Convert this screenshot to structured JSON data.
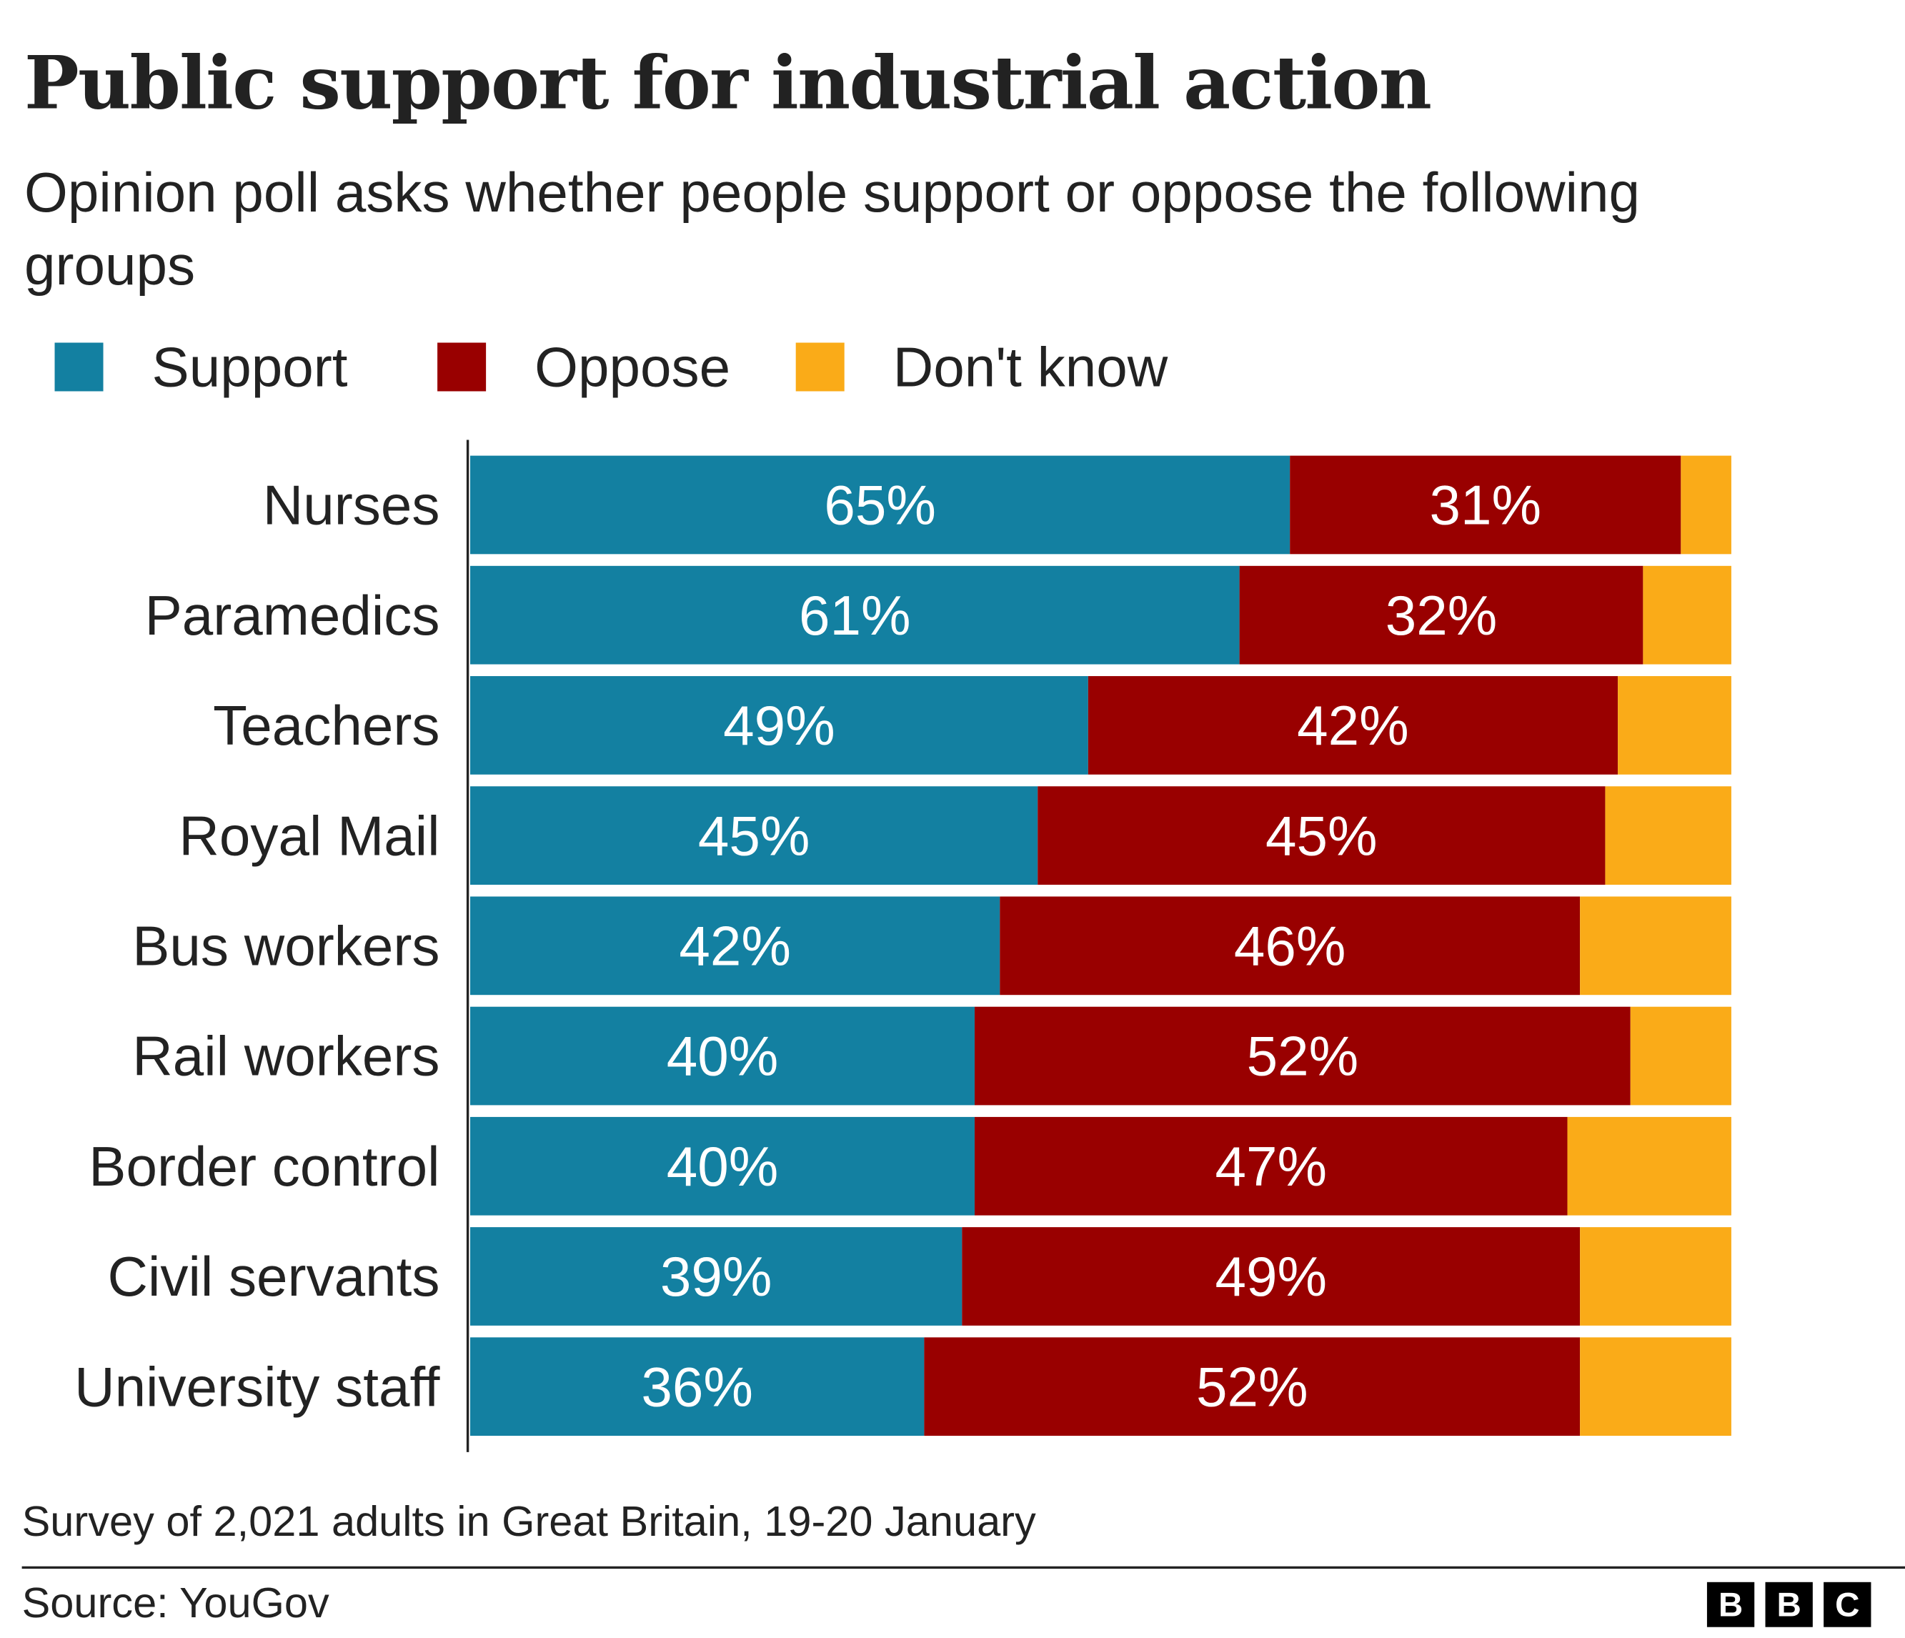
{
  "chart_data": {
    "type": "bar",
    "orientation": "horizontal",
    "stacked": true,
    "title": "Public support for industrial action",
    "subtitle": "Opinion poll asks whether people support or oppose the following groups",
    "categories": [
      "Nurses",
      "Paramedics",
      "Teachers",
      "Royal Mail",
      "Bus workers",
      "Rail workers",
      "Border control",
      "Civil servants",
      "University staff"
    ],
    "series": [
      {
        "name": "Support",
        "color": "#1380a1",
        "values": [
          65,
          61,
          49,
          45,
          42,
          40,
          40,
          39,
          36
        ]
      },
      {
        "name": "Oppose",
        "color": "#990000",
        "values": [
          31,
          32,
          42,
          45,
          46,
          52,
          47,
          49,
          52
        ]
      },
      {
        "name": "Don't know",
        "color": "#faab18",
        "values": [
          4,
          7,
          9,
          10,
          12,
          8,
          13,
          12,
          12
        ]
      }
    ],
    "value_suffix": "%",
    "xlim": [
      0,
      100
    ],
    "legend_position": "top-left",
    "grid": false,
    "footnote": "Survey of 2,021 adults in Great Britain, 19-20 January",
    "source": "Source: YouGov"
  },
  "branding": {
    "logo_letters": [
      "B",
      "B",
      "C"
    ]
  }
}
